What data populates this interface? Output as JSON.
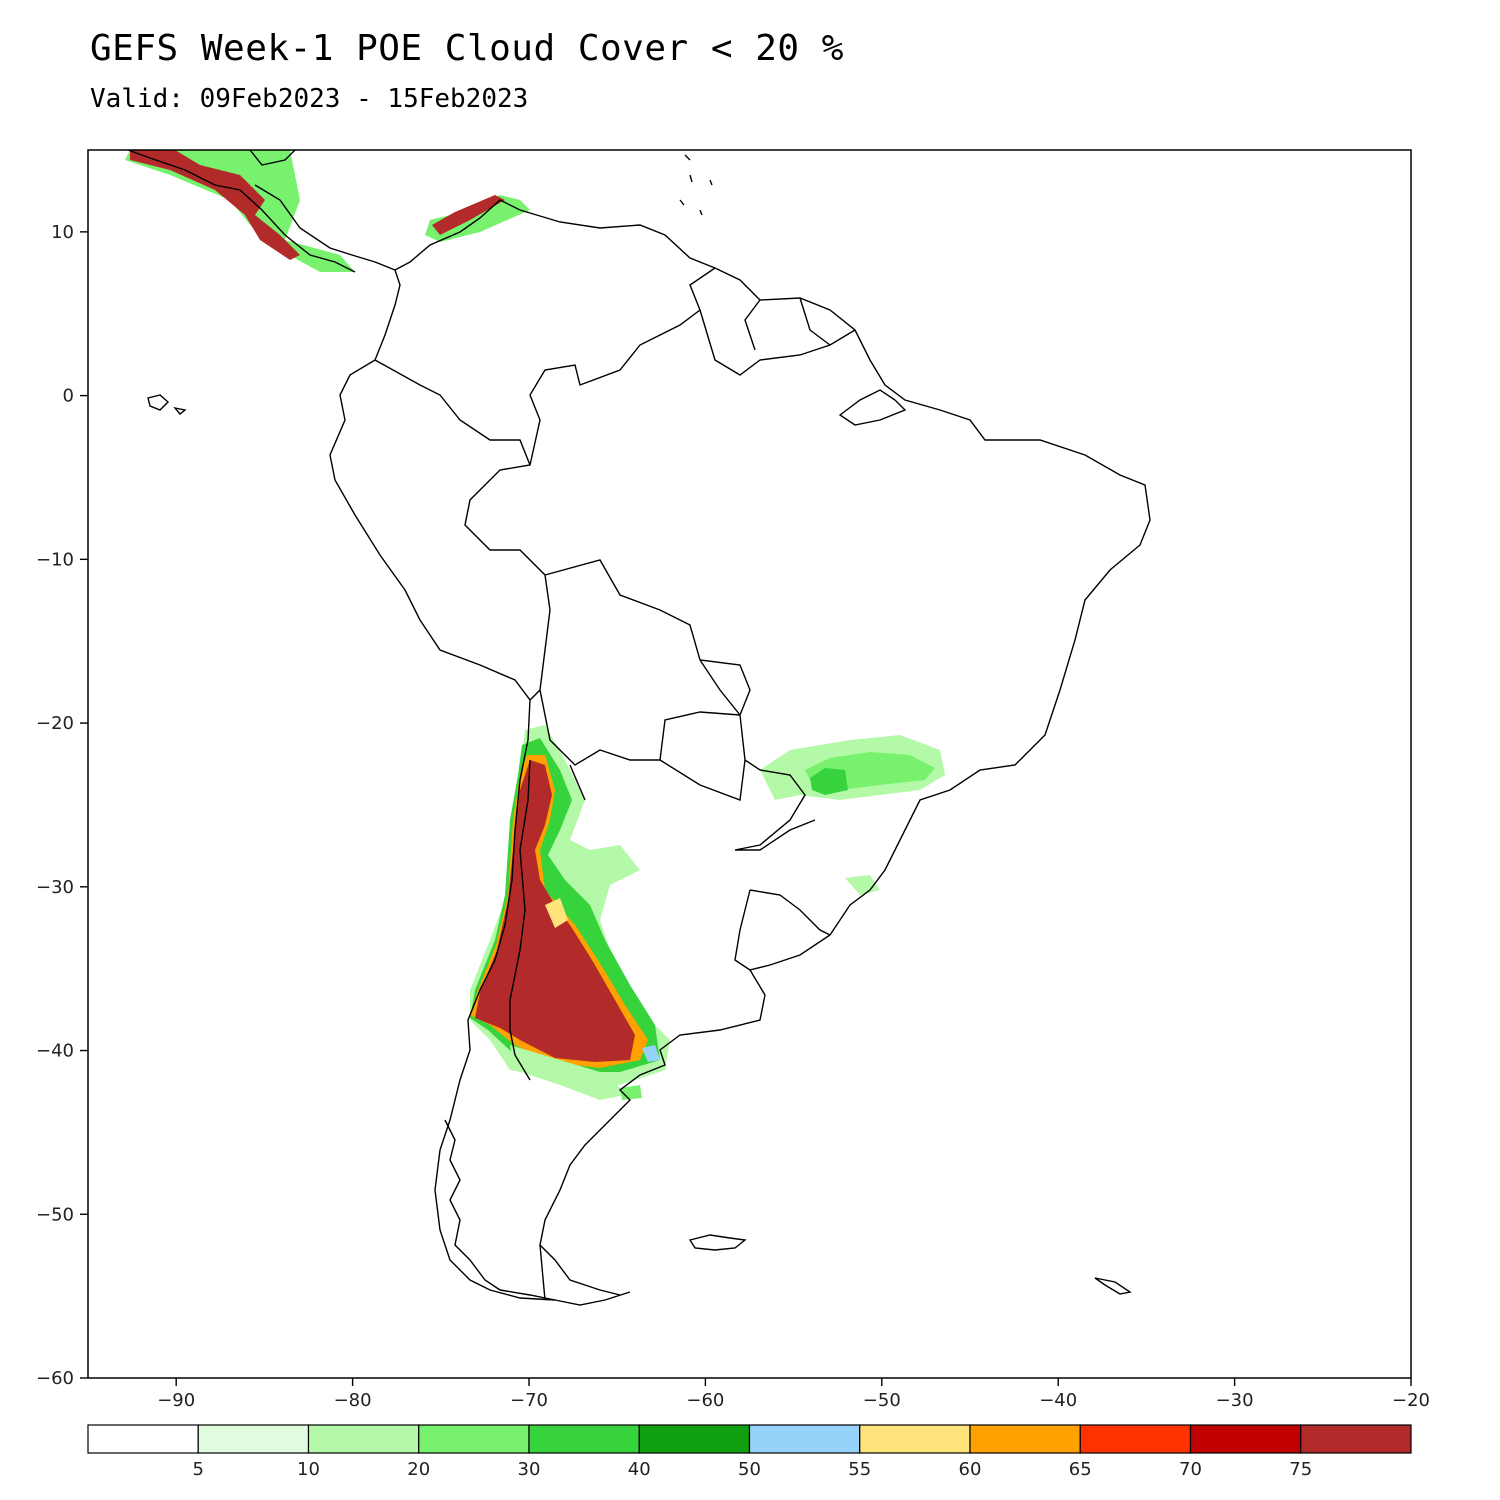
{
  "title": "GEFS Week-1 POE Cloud Cover < 20 %",
  "subtitle": "Valid: 09Feb2023 - 15Feb2023",
  "map": {
    "lon_range": [
      -95,
      -20
    ],
    "lat_range": [
      -60,
      15
    ],
    "lon_ticks": [
      {
        "value": -90,
        "label": "-90"
      },
      {
        "value": -80,
        "label": "-80"
      },
      {
        "value": -70,
        "label": "-70"
      },
      {
        "value": -60,
        "label": "-60"
      },
      {
        "value": -50,
        "label": "-50"
      },
      {
        "value": -40,
        "label": "-40"
      },
      {
        "value": -30,
        "label": "-30"
      },
      {
        "value": -20,
        "label": "-20"
      }
    ],
    "lat_ticks": [
      {
        "value": 10,
        "label": "10"
      },
      {
        "value": 0,
        "label": "0"
      },
      {
        "value": -10,
        "label": "-10"
      },
      {
        "value": -20,
        "label": "-20"
      },
      {
        "value": -30,
        "label": "-30"
      },
      {
        "value": -40,
        "label": "-40"
      },
      {
        "value": -50,
        "label": "-50"
      },
      {
        "value": -60,
        "label": "-60"
      }
    ]
  },
  "colorbar": {
    "colors": [
      "#ffffff",
      "#e0fde0",
      "#b4f9a8",
      "#78f26e",
      "#37d33d",
      "#10a010",
      "#96d2fa",
      "#fee47a",
      "#ffa100",
      "#ff3200",
      "#c10000",
      "#b22a2a"
    ],
    "labels": [
      "5",
      "10",
      "20",
      "30",
      "40",
      "50",
      "55",
      "60",
      "65",
      "70",
      "75"
    ]
  },
  "colors": {
    "dark_red": "#b22a2a",
    "green": "#37d33d",
    "light_green": "#b4f9a8",
    "orange": "#ffa100"
  }
}
